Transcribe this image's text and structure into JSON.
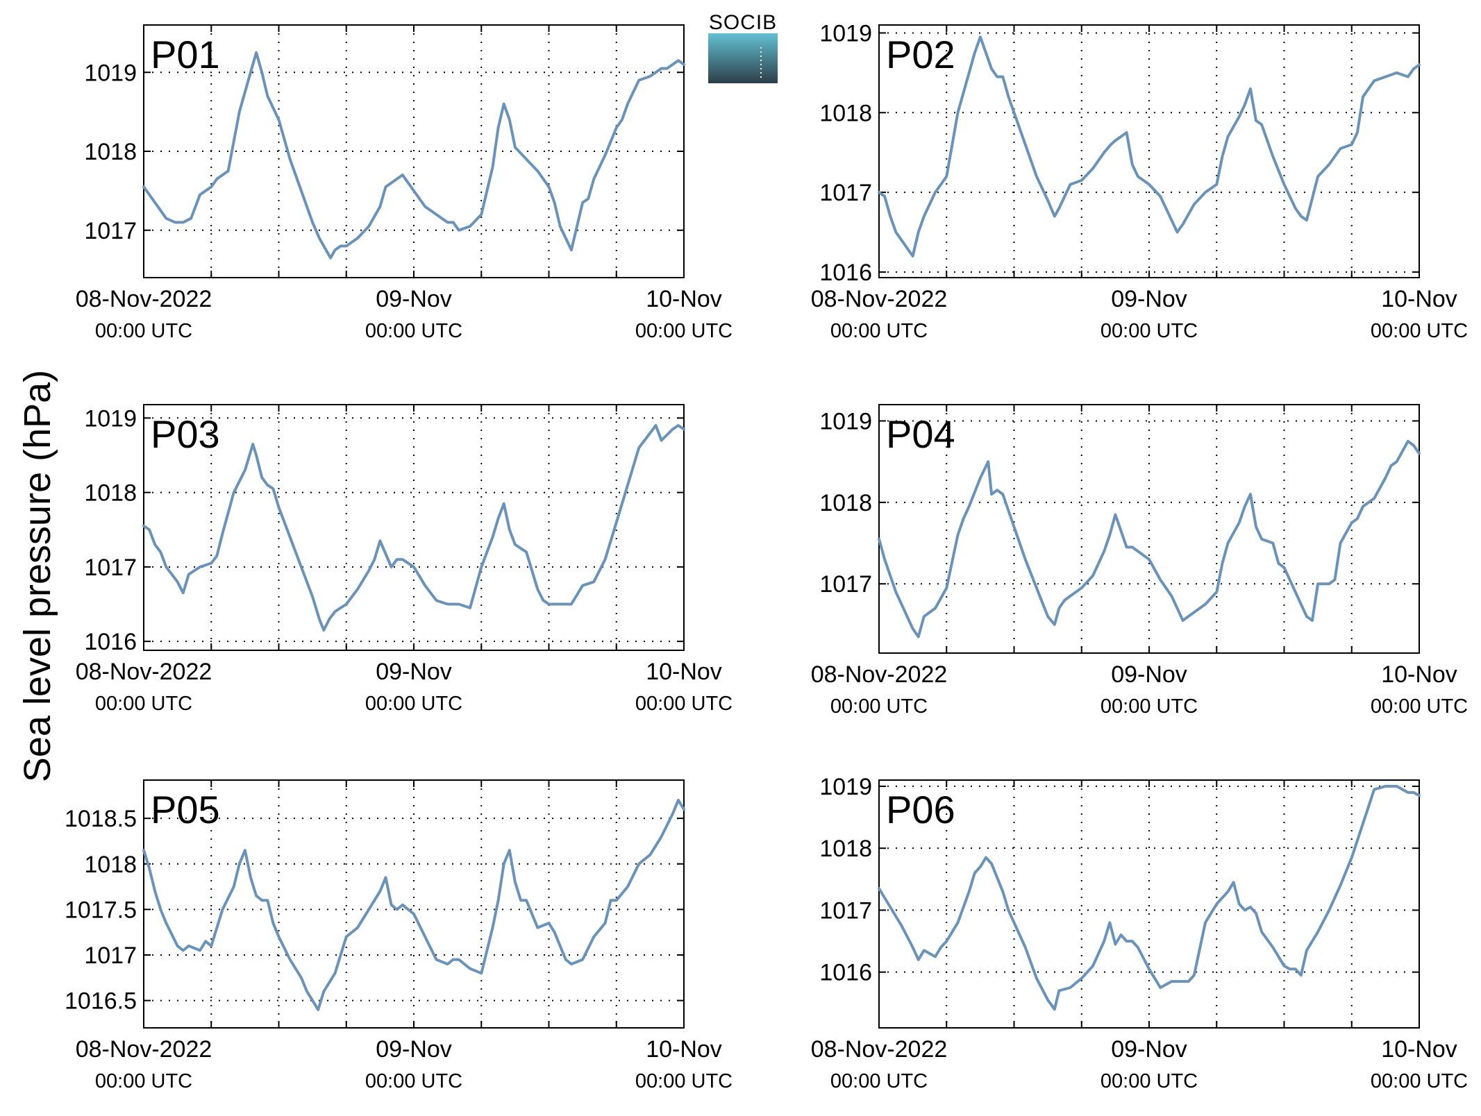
{
  "ylabel": "Sea level pressure (hPa)",
  "logo": {
    "text": "SOCIB"
  },
  "colors": {
    "series": "#6a93b9",
    "panel_label": "#ff0000",
    "logo_top": "#62c1d4",
    "logo_bottom": "#2d3e48"
  },
  "x_axis": {
    "range_hours": [
      0,
      48
    ],
    "grid_hours": [
      6,
      12,
      18,
      24,
      30,
      36,
      42
    ],
    "minor_tick_hours": [
      6,
      18,
      30,
      42
    ],
    "labels": [
      {
        "hour": 0,
        "date": "08-Nov-2022",
        "time": "00:00 UTC"
      },
      {
        "hour": 24,
        "date": "09-Nov",
        "time": "00:00 UTC"
      },
      {
        "hour": 48,
        "date": "10-Nov",
        "time": "00:00 UTC"
      }
    ]
  },
  "chart_data": [
    {
      "type": "line",
      "name": "P01",
      "ylim": [
        1016.4,
        1019.6
      ],
      "yticks": [
        "1017",
        "1018",
        "1019"
      ],
      "x": [
        0,
        1,
        2,
        2.8,
        3.5,
        4.2,
        5,
        6,
        6.5,
        7.5,
        8.5,
        9.3,
        10,
        10.5,
        11,
        12,
        13,
        14,
        15,
        15.6,
        16,
        16.6,
        17,
        17.5,
        18,
        19,
        20,
        21,
        21.5,
        22,
        23,
        24,
        25,
        26,
        27,
        27.5,
        28,
        29,
        30,
        31,
        31.5,
        32,
        32.5,
        33,
        34,
        35,
        36,
        36.5,
        37,
        37.5,
        38,
        39,
        39.5,
        40,
        41,
        42,
        42.5,
        43,
        44,
        45,
        46,
        46.5,
        47,
        47.5,
        48
      ],
      "y": [
        1017.55,
        1017.35,
        1017.15,
        1017.1,
        1017.1,
        1017.15,
        1017.45,
        1017.55,
        1017.65,
        1017.75,
        1018.5,
        1018.9,
        1019.25,
        1019.0,
        1018.7,
        1018.4,
        1017.9,
        1017.5,
        1017.1,
        1016.9,
        1016.8,
        1016.65,
        1016.75,
        1016.8,
        1016.8,
        1016.9,
        1017.05,
        1017.3,
        1017.55,
        1017.6,
        1017.7,
        1017.5,
        1017.3,
        1017.2,
        1017.1,
        1017.1,
        1017.0,
        1017.05,
        1017.2,
        1017.8,
        1018.3,
        1018.6,
        1018.4,
        1018.05,
        1017.9,
        1017.75,
        1017.55,
        1017.35,
        1017.05,
        1016.9,
        1016.75,
        1017.35,
        1017.4,
        1017.65,
        1017.95,
        1018.3,
        1018.4,
        1018.6,
        1018.9,
        1018.95,
        1019.05,
        1019.05,
        1019.1,
        1019.15,
        1019.1
      ]
    },
    {
      "type": "line",
      "name": "P02",
      "ylim": [
        1015.93,
        1019.1
      ],
      "yticks": [
        "1016",
        "1017",
        "1018",
        "1019"
      ],
      "x": [
        0,
        0.5,
        1,
        1.5,
        2,
        3,
        3.5,
        4,
        5,
        6,
        6.5,
        7,
        8,
        8.5,
        9,
        10,
        10.5,
        11,
        11.5,
        12,
        13,
        14,
        15,
        15.6,
        16,
        17,
        18,
        19,
        20,
        20.6,
        21,
        22,
        22.5,
        23,
        24,
        25,
        26,
        26.5,
        27,
        28,
        29,
        30,
        30.5,
        31,
        32,
        32.5,
        33,
        33.5,
        34,
        35,
        36,
        37,
        37.5,
        38,
        39,
        40,
        40.5,
        41,
        42,
        42.5,
        43,
        44,
        45,
        46,
        47,
        47.5,
        48
      ],
      "y": [
        1017.0,
        1016.95,
        1016.7,
        1016.5,
        1016.4,
        1016.2,
        1016.5,
        1016.7,
        1017.0,
        1017.2,
        1017.6,
        1018.0,
        1018.5,
        1018.75,
        1018.95,
        1018.55,
        1018.45,
        1018.45,
        1018.2,
        1018.0,
        1017.6,
        1017.2,
        1016.9,
        1016.7,
        1016.8,
        1017.1,
        1017.15,
        1017.3,
        1017.5,
        1017.6,
        1017.65,
        1017.75,
        1017.35,
        1017.2,
        1017.1,
        1016.95,
        1016.65,
        1016.5,
        1016.6,
        1016.85,
        1017.0,
        1017.1,
        1017.45,
        1017.7,
        1017.95,
        1018.1,
        1018.3,
        1017.9,
        1017.85,
        1017.45,
        1017.1,
        1016.8,
        1016.7,
        1016.65,
        1017.2,
        1017.35,
        1017.45,
        1017.55,
        1017.6,
        1017.75,
        1018.2,
        1018.4,
        1018.45,
        1018.5,
        1018.45,
        1018.55,
        1018.6
      ]
    },
    {
      "type": "line",
      "name": "P03",
      "ylim": [
        1015.88,
        1019.18
      ],
      "yticks": [
        "1016",
        "1017",
        "1018",
        "1019"
      ],
      "x": [
        0,
        0.5,
        1,
        1.5,
        2,
        3,
        3.5,
        4,
        4.5,
        5,
        6,
        6.5,
        7,
        8,
        9,
        9.7,
        10,
        10.5,
        11,
        11.5,
        12,
        13,
        14,
        15,
        15.6,
        16,
        16.5,
        17,
        18,
        19,
        20,
        20.5,
        21,
        22,
        22.5,
        23,
        24,
        25,
        26,
        27,
        27.5,
        28,
        29,
        30,
        31,
        31.5,
        32,
        32.5,
        33,
        34,
        35,
        35.5,
        36,
        37,
        38,
        39,
        40,
        41,
        42,
        43,
        44,
        45,
        45.5,
        46,
        47,
        47.5,
        48
      ],
      "y": [
        1017.55,
        1017.5,
        1017.3,
        1017.2,
        1017.0,
        1016.8,
        1016.65,
        1016.9,
        1016.95,
        1017.0,
        1017.05,
        1017.15,
        1017.45,
        1018.0,
        1018.3,
        1018.65,
        1018.5,
        1018.2,
        1018.1,
        1018.05,
        1017.8,
        1017.4,
        1017.0,
        1016.6,
        1016.3,
        1016.15,
        1016.3,
        1016.4,
        1016.5,
        1016.7,
        1016.95,
        1017.1,
        1017.35,
        1017.0,
        1017.1,
        1017.1,
        1017.0,
        1016.75,
        1016.55,
        1016.5,
        1016.5,
        1016.5,
        1016.45,
        1017.0,
        1017.4,
        1017.65,
        1017.85,
        1017.5,
        1017.3,
        1017.2,
        1016.7,
        1016.55,
        1016.5,
        1016.5,
        1016.5,
        1016.75,
        1016.8,
        1017.1,
        1017.6,
        1018.1,
        1018.6,
        1018.8,
        1018.9,
        1018.7,
        1018.85,
        1018.9,
        1018.85
      ]
    },
    {
      "type": "line",
      "name": "P04",
      "ylim": [
        1016.15,
        1019.2
      ],
      "yticks": [
        "1017",
        "1018",
        "1019"
      ],
      "x": [
        0,
        0.5,
        1,
        1.5,
        2,
        2.5,
        3,
        3.5,
        4,
        5,
        6,
        7,
        7.5,
        8,
        9,
        9.7,
        10,
        10.5,
        11,
        11.5,
        12,
        13,
        14,
        15,
        15.6,
        16,
        16.5,
        17,
        18,
        19,
        20,
        20.5,
        21,
        22,
        22.5,
        23,
        24,
        25,
        26,
        27,
        28,
        29,
        30,
        30.5,
        31,
        32,
        32.5,
        33,
        33.5,
        34,
        35,
        35.5,
        36,
        37,
        38,
        38.5,
        39,
        40,
        40.5,
        41,
        42,
        42.5,
        43,
        44,
        45,
        45.5,
        46,
        47,
        47.5,
        48
      ],
      "y": [
        1017.55,
        1017.3,
        1017.1,
        1016.9,
        1016.75,
        1016.6,
        1016.45,
        1016.35,
        1016.6,
        1016.7,
        1016.95,
        1017.6,
        1017.8,
        1017.95,
        1018.3,
        1018.5,
        1018.1,
        1018.15,
        1018.1,
        1017.9,
        1017.7,
        1017.3,
        1016.95,
        1016.6,
        1016.5,
        1016.7,
        1016.8,
        1016.85,
        1016.95,
        1017.1,
        1017.4,
        1017.6,
        1017.85,
        1017.45,
        1017.45,
        1017.4,
        1017.3,
        1017.05,
        1016.85,
        1016.55,
        1016.65,
        1016.75,
        1016.9,
        1017.25,
        1017.5,
        1017.75,
        1017.95,
        1018.1,
        1017.7,
        1017.55,
        1017.5,
        1017.25,
        1017.2,
        1016.9,
        1016.6,
        1016.55,
        1017.0,
        1017.0,
        1017.05,
        1017.5,
        1017.75,
        1017.8,
        1017.95,
        1018.05,
        1018.3,
        1018.45,
        1018.5,
        1018.75,
        1018.7,
        1018.6
      ]
    },
    {
      "type": "line",
      "name": "P05",
      "ylim": [
        1016.2,
        1018.92
      ],
      "yticks": [
        "1016.5",
        "1017",
        "1017.5",
        "1018",
        "1018.5"
      ],
      "x": [
        0,
        0.5,
        1,
        1.5,
        2,
        3,
        3.5,
        4,
        5,
        5.5,
        6,
        7,
        8,
        8.5,
        9,
        9.5,
        10,
        10.5,
        11,
        11.5,
        12,
        13,
        14,
        14.5,
        15,
        15.5,
        16,
        16.5,
        17,
        17.5,
        18,
        19,
        20,
        21,
        21.5,
        22,
        22.5,
        23,
        24,
        25,
        26,
        27,
        27.5,
        28,
        29,
        30,
        31,
        31.5,
        32,
        32.5,
        33,
        33.5,
        34,
        35,
        36,
        36.5,
        37,
        37.5,
        38,
        39,
        40,
        41,
        41.5,
        42,
        43,
        44,
        45,
        46,
        47,
        47.5,
        48
      ],
      "y": [
        1018.15,
        1017.95,
        1017.7,
        1017.5,
        1017.35,
        1017.1,
        1017.05,
        1017.1,
        1017.05,
        1017.15,
        1017.1,
        1017.5,
        1017.75,
        1018.0,
        1018.15,
        1017.85,
        1017.65,
        1017.6,
        1017.6,
        1017.35,
        1017.2,
        1016.95,
        1016.75,
        1016.6,
        1016.5,
        1016.4,
        1016.6,
        1016.7,
        1016.8,
        1017.0,
        1017.2,
        1017.3,
        1017.5,
        1017.7,
        1017.85,
        1017.55,
        1017.5,
        1017.55,
        1017.45,
        1017.2,
        1016.95,
        1016.9,
        1016.95,
        1016.95,
        1016.85,
        1016.8,
        1017.3,
        1017.6,
        1018.0,
        1018.15,
        1017.8,
        1017.6,
        1017.6,
        1017.3,
        1017.35,
        1017.25,
        1017.1,
        1016.95,
        1016.9,
        1016.95,
        1017.2,
        1017.35,
        1017.6,
        1017.6,
        1017.75,
        1018.0,
        1018.1,
        1018.3,
        1018.55,
        1018.7,
        1018.6
      ]
    },
    {
      "type": "line",
      "name": "P06",
      "ylim": [
        1015.1,
        1019.1
      ],
      "yticks": [
        "1016",
        "1017",
        "1018",
        "1019"
      ],
      "x": [
        0,
        0.5,
        1,
        2,
        3,
        3.5,
        4,
        4.5,
        5,
        5.5,
        6,
        7,
        8,
        8.5,
        9,
        9.5,
        10,
        11,
        11.5,
        12,
        13,
        14,
        15,
        15.6,
        16,
        17,
        18,
        19,
        20,
        20.5,
        21,
        21.5,
        22,
        22.5,
        23,
        24,
        25,
        26,
        27,
        27.5,
        28,
        29,
        30,
        31,
        31.5,
        32,
        32.5,
        33,
        33.5,
        34,
        35,
        36,
        36.5,
        37,
        37.5,
        38,
        39,
        40,
        41,
        42,
        43,
        44,
        45,
        46,
        47,
        47.5,
        48
      ],
      "y": [
        1017.35,
        1017.2,
        1017.05,
        1016.75,
        1016.4,
        1016.2,
        1016.35,
        1016.3,
        1016.25,
        1016.4,
        1016.5,
        1016.8,
        1017.3,
        1017.6,
        1017.7,
        1017.85,
        1017.75,
        1017.3,
        1017.0,
        1016.8,
        1016.4,
        1015.9,
        1015.55,
        1015.4,
        1015.7,
        1015.75,
        1015.9,
        1016.1,
        1016.5,
        1016.8,
        1016.45,
        1016.6,
        1016.5,
        1016.5,
        1016.4,
        1016.05,
        1015.75,
        1015.85,
        1015.85,
        1015.85,
        1015.95,
        1016.8,
        1017.1,
        1017.3,
        1017.45,
        1017.1,
        1017.0,
        1017.05,
        1016.95,
        1016.65,
        1016.4,
        1016.1,
        1016.05,
        1016.05,
        1015.95,
        1016.35,
        1016.65,
        1017.0,
        1017.4,
        1017.85,
        1018.4,
        1018.95,
        1019.0,
        1019.0,
        1018.9,
        1018.9,
        1018.85
      ]
    }
  ]
}
